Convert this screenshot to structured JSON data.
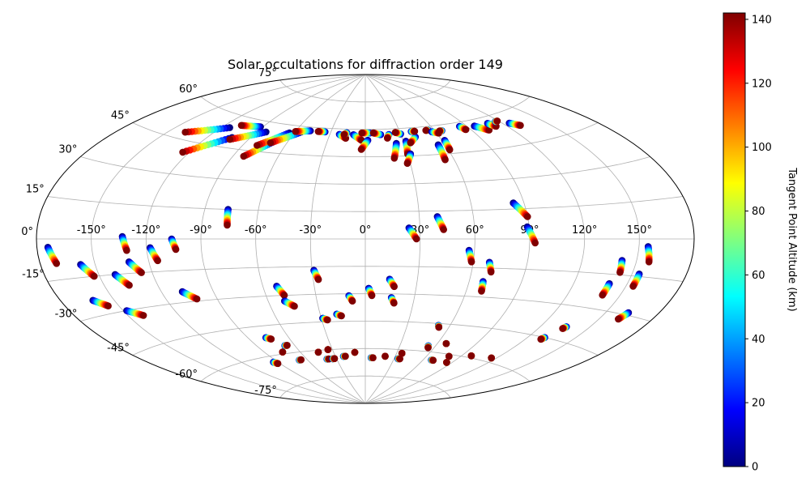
{
  "chart_data": {
    "type": "scatter",
    "projection": "aitoff",
    "title": "Solar occultations for diffraction order 149",
    "grid": true,
    "lon_ticks": [
      -150,
      -120,
      -90,
      -60,
      -30,
      0,
      30,
      60,
      90,
      120,
      150
    ],
    "lat_ticks": [
      -75,
      -60,
      -45,
      -30,
      -15,
      0,
      15,
      30,
      45,
      60,
      75
    ],
    "lon_tick_labels": [
      "-150°",
      "-120°",
      "-90°",
      "-60°",
      "-30°",
      "0°",
      "30°",
      "60°",
      "90°",
      "120°",
      "150°"
    ],
    "lat_tick_labels": [
      "-75°",
      "-60°",
      "-45°",
      "-30°",
      "-15°",
      "0°",
      "15°",
      "30°",
      "45°",
      "60°",
      "75°"
    ],
    "colorbar": {
      "label": "Tangent Point Altitude (km)",
      "range": [
        0,
        142
      ],
      "ticks": [
        0,
        20,
        40,
        60,
        80,
        100,
        120,
        140
      ],
      "tick_labels": [
        "0",
        "20",
        "40",
        "60",
        "80",
        "100",
        "120",
        "140"
      ],
      "colormap": "jet"
    },
    "tracks_note": "each track: lon/lat (deg) at 0 km altitude -> lon/lat at top altitude (~140 km)",
    "tracks": [
      {
        "lon0": -174,
        "lat0": -3,
        "lon1": -171,
        "lat1": -9
      },
      {
        "lon0": -158,
        "lat0": -10,
        "lon1": -153,
        "lat1": -15
      },
      {
        "lon0": -162,
        "lat0": -24,
        "lon1": -156,
        "lat1": -27
      },
      {
        "lon0": -148,
        "lat0": -30,
        "lon1": -141,
        "lat1": -33
      },
      {
        "lon0": -141,
        "lat0": -15,
        "lon1": -136,
        "lat1": -20
      },
      {
        "lon0": -133,
        "lat0": 1,
        "lon1": -131,
        "lat1": -5
      },
      {
        "lon0": -131,
        "lat0": -10,
        "lon1": -126,
        "lat1": -15
      },
      {
        "lon0": -118,
        "lat0": -4,
        "lon1": -115,
        "lat1": -10
      },
      {
        "lon0": -106,
        "lat0": 0,
        "lon1": -104,
        "lat1": -5
      },
      {
        "lon0": -108,
        "lat0": -25,
        "lon1": -102,
        "lat1": -29
      },
      {
        "lon0": -77,
        "lat0": 15,
        "lon1": -76,
        "lat1": 7
      },
      {
        "lon0": -52,
        "lat0": -25,
        "lon1": -49,
        "lat1": -30
      },
      {
        "lon0": -50,
        "lat0": -33,
        "lon1": -45,
        "lat1": -36
      },
      {
        "lon0": -29,
        "lat0": -17,
        "lon1": -27,
        "lat1": -22
      },
      {
        "lon0": -29,
        "lat0": -43,
        "lon1": -26,
        "lat1": -44
      },
      {
        "lon0": -19,
        "lat0": -41,
        "lon1": -16,
        "lat1": -42
      },
      {
        "lon0": -10,
        "lat0": -31,
        "lon1": -8,
        "lat1": -34
      },
      {
        "lon0": 2,
        "lat0": -27,
        "lon1": 4,
        "lat1": -31
      },
      {
        "lon0": 14,
        "lat0": -22,
        "lon1": 17,
        "lat1": -26
      },
      {
        "lon0": 16,
        "lat0": -32,
        "lon1": 18,
        "lat1": -35
      },
      {
        "lon0": 24,
        "lat0": 6,
        "lon1": 28,
        "lat1": 0
      },
      {
        "lon0": 40,
        "lat0": 12,
        "lon1": 43,
        "lat1": 5
      },
      {
        "lon0": 57,
        "lat0": -6,
        "lon1": 59,
        "lat1": -12
      },
      {
        "lon0": 69,
        "lat0": -12,
        "lon1": 71,
        "lat1": -17
      },
      {
        "lon0": 68,
        "lat0": -22,
        "lon1": 69,
        "lat1": -27
      },
      {
        "lon0": 84,
        "lat0": 18,
        "lon1": 90,
        "lat1": 11
      },
      {
        "lon0": 89,
        "lat0": 6,
        "lon1": 93,
        "lat1": -2
      },
      {
        "lon0": 142,
        "lat0": -9,
        "lon1": 143,
        "lat1": -14
      },
      {
        "lon0": 140,
        "lat0": -19,
        "lon1": 140,
        "lat1": -24
      },
      {
        "lon0": 155,
        "lat0": -3,
        "lon1": 157,
        "lat1": -9
      },
      {
        "lon0": 154,
        "lat0": -14,
        "lon1": 154,
        "lat1": -19
      },
      {
        "lon0": 163,
        "lat0": -29,
        "lon1": 161,
        "lat1": -32
      },
      {
        "lon0": -114,
        "lat0": 54,
        "lon1": -139,
        "lat1": 48
      },
      {
        "lon0": -103,
        "lat0": 50,
        "lon1": -124,
        "lat1": 40
      },
      {
        "lon0": -92,
        "lat0": 57,
        "lon1": -108,
        "lat1": 56
      },
      {
        "lon0": -83,
        "lat0": 55,
        "lon1": -103,
        "lat1": 49
      },
      {
        "lon0": -70,
        "lat0": 51,
        "lon1": -83,
        "lat1": 42
      },
      {
        "lon0": -64,
        "lat0": 56,
        "lon1": -80,
        "lat1": 48
      },
      {
        "lon0": -55,
        "lat0": 57,
        "lon1": -72,
        "lat1": 50
      },
      {
        "lon0": -48,
        "lat0": 58,
        "lon1": -60,
        "lat1": 57
      },
      {
        "lon0": -35,
        "lat0": 58,
        "lon1": -41,
        "lat1": 58
      },
      {
        "lon0": -22,
        "lat0": 57,
        "lon1": -16,
        "lat1": 55
      },
      {
        "lon0": -16,
        "lat0": 58,
        "lon1": -18,
        "lat1": 57
      },
      {
        "lon0": -10,
        "lat0": 57,
        "lon1": -3,
        "lat1": 54
      },
      {
        "lon0": 2,
        "lat0": 54,
        "lon1": -3,
        "lat1": 49
      },
      {
        "lon0": 4,
        "lat0": 58,
        "lon1": -3,
        "lat1": 58
      },
      {
        "lon0": 13,
        "lat0": 57,
        "lon1": 7,
        "lat1": 58
      },
      {
        "lon0": 20,
        "lat0": 57,
        "lon1": 18,
        "lat1": 55
      },
      {
        "lon0": 24,
        "lat0": 52,
        "lon1": 20,
        "lat1": 44
      },
      {
        "lon0": 30,
        "lat0": 57,
        "lon1": 26,
        "lat1": 58
      },
      {
        "lon0": 32,
        "lat0": 53,
        "lon1": 30,
        "lat1": 46
      },
      {
        "lon0": 32,
        "lat0": 46,
        "lon1": 28,
        "lat1": 41
      },
      {
        "lon0": 41,
        "lat0": 55,
        "lon1": 35,
        "lat1": 52
      },
      {
        "lon0": 40,
        "lat0": 58,
        "lon1": 43,
        "lat1": 58
      },
      {
        "lon0": 55,
        "lat0": 58,
        "lon1": 53,
        "lat1": 58
      },
      {
        "lon0": 55,
        "lat0": 50,
        "lon1": 54,
        "lat1": 42
      },
      {
        "lon0": 57,
        "lat0": 57,
        "lon1": 62,
        "lat1": 56
      },
      {
        "lon0": 62,
        "lat0": 52,
        "lon1": 61,
        "lat1": 47
      },
      {
        "lon0": 66,
        "lat0": 57,
        "lon1": 64,
        "lat1": 57
      },
      {
        "lon0": 84,
        "lat0": 58,
        "lon1": 86,
        "lat1": 56
      },
      {
        "lon0": 96,
        "lat0": 57,
        "lon1": 103,
        "lat1": 54
      },
      {
        "lon0": 109,
        "lat0": 57,
        "lon1": 112,
        "lat1": 55
      },
      {
        "lon0": 117,
        "lat0": 57,
        "lon1": 119,
        "lat1": 57
      },
      {
        "lon0": 125,
        "lat0": 55,
        "lon1": 130,
        "lat1": 53
      },
      {
        "lon0": -94,
        "lat0": -63,
        "lon1": -92,
        "lat1": -64
      },
      {
        "lon0": -77,
        "lat0": -51,
        "lon1": -74,
        "lat1": -52
      },
      {
        "lon0": -75,
        "lat0": -59,
        "lon1": -75,
        "lat1": -59
      },
      {
        "lon0": -68,
        "lat0": -56,
        "lon1": -66,
        "lat1": -56
      },
      {
        "lon0": -68,
        "lat0": -64,
        "lon1": -66,
        "lat1": -64
      },
      {
        "lon0": -44,
        "lat0": -61,
        "lon1": -44,
        "lat1": -61
      },
      {
        "lon0": -40,
        "lat0": -65,
        "lon1": -38,
        "lat1": -65
      },
      {
        "lon0": -34,
        "lat0": -60,
        "lon1": -34,
        "lat1": -60
      },
      {
        "lon0": -34,
        "lat0": -65,
        "lon1": -32,
        "lat1": -65
      },
      {
        "lon0": -22,
        "lat0": -64,
        "lon1": -20,
        "lat1": -64
      },
      {
        "lon0": -10,
        "lat0": -62,
        "lon1": -10,
        "lat1": -62
      },
      {
        "lon0": 6,
        "lat0": -65,
        "lon1": 8,
        "lat1": -65
      },
      {
        "lon0": 20,
        "lat0": -64,
        "lon1": 20,
        "lat1": -64
      },
      {
        "lon0": 35,
        "lat0": -62,
        "lon1": 35,
        "lat1": -62
      },
      {
        "lon0": 34,
        "lat0": -65,
        "lon1": 36,
        "lat1": -65
      },
      {
        "lon0": 54,
        "lat0": -57,
        "lon1": 55,
        "lat1": -58
      },
      {
        "lon0": 52,
        "lat0": -46,
        "lon1": 53,
        "lat1": -47
      },
      {
        "lon0": 67,
        "lat0": -55,
        "lon1": 67,
        "lat1": -55
      },
      {
        "lon0": 68,
        "lat0": -64,
        "lon1": 70,
        "lat1": -64
      },
      {
        "lon0": 80,
        "lat0": -61,
        "lon1": 80,
        "lat1": -61
      },
      {
        "lon0": 85,
        "lat0": -64,
        "lon1": 85,
        "lat1": -64
      },
      {
        "lon0": 98,
        "lat0": -59,
        "lon1": 98,
        "lat1": -59
      },
      {
        "lon0": 116,
        "lat0": -58,
        "lon1": 116,
        "lat1": -58
      },
      {
        "lon0": 131,
        "lat0": -45,
        "lon1": 130,
        "lat1": -46
      },
      {
        "lon0": 136,
        "lat0": -39,
        "lon1": 135,
        "lat1": -40
      }
    ]
  }
}
